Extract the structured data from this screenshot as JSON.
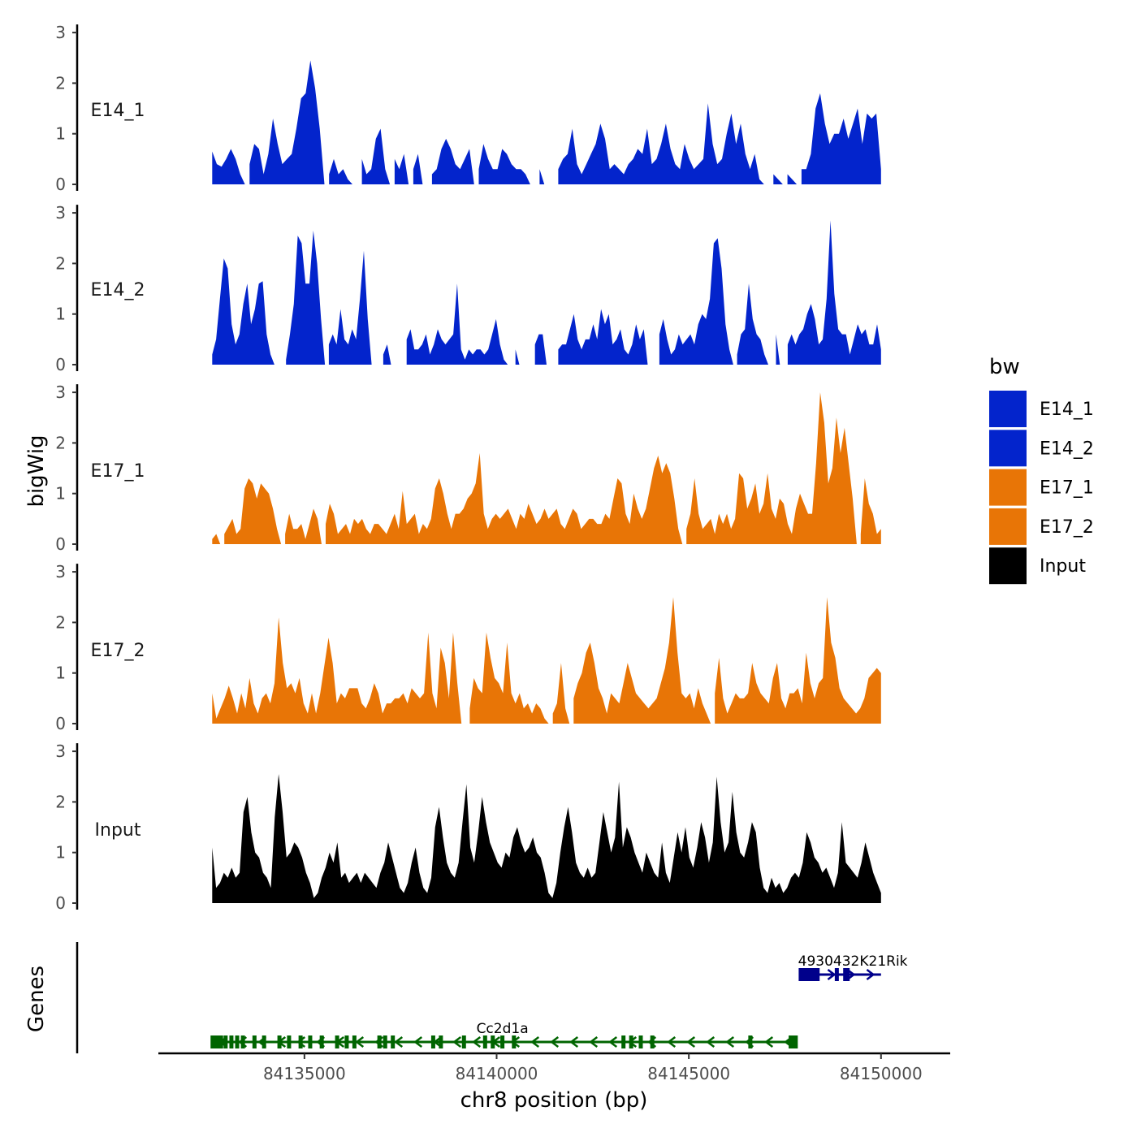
{
  "chart_data": {
    "type": "area",
    "ylabel": "bigWig",
    "xlabel": "chr8 position (bp)",
    "x_range": [
      84132600,
      84150000
    ],
    "xlim": [
      84131200,
      84151800
    ],
    "ylim": [
      0,
      3
    ],
    "y_ticks": [
      "0",
      "1",
      "2",
      "3"
    ],
    "x_ticks": [
      {
        "value": 84135000,
        "label": "84135000"
      },
      {
        "value": 84140000,
        "label": "84140000"
      },
      {
        "value": 84145000,
        "label": "84145000"
      },
      {
        "value": 84150000,
        "label": "84150000"
      }
    ],
    "genes_axis_label": "Genes",
    "legend": {
      "title": "bw",
      "entries": [
        {
          "label": "E14_1",
          "color": "#0324cc"
        },
        {
          "label": "E14_2",
          "color": "#0324cc"
        },
        {
          "label": "E17_1",
          "color": "#e87506"
        },
        {
          "label": "E17_2",
          "color": "#e87506"
        },
        {
          "label": "Input",
          "color": "#000000"
        }
      ]
    },
    "series": [
      {
        "name": "E14_1",
        "color": "#0324cc",
        "label": "E14_1",
        "values": [
          0.65,
          0.4,
          0.35,
          0.5,
          0.7,
          0.5,
          0.2,
          0,
          0.4,
          0.8,
          0.7,
          0.2,
          0.6,
          1.3,
          0.8,
          0.4,
          0.5,
          0.6,
          1.1,
          1.7,
          1.8,
          2.45,
          1.9,
          1.1,
          0,
          0.2,
          0.5,
          0.2,
          0.3,
          0.1,
          0,
          0,
          0.5,
          0.2,
          0.3,
          0.9,
          1.1,
          0.3,
          0,
          0.5,
          0.3,
          0.6,
          0,
          0.3,
          0.6,
          0,
          0,
          0.2,
          0.3,
          0.7,
          0.9,
          0.7,
          0.4,
          0.3,
          0.5,
          0.7,
          0,
          0.3,
          0.8,
          0.5,
          0.3,
          0.3,
          0.7,
          0.6,
          0.4,
          0.3,
          0.3,
          0.2,
          0,
          0,
          0.3,
          0,
          0,
          0,
          0.3,
          0.5,
          0.6,
          1.1,
          0.4,
          0.2,
          0.4,
          0.6,
          0.8,
          1.2,
          0.9,
          0.3,
          0.4,
          0.3,
          0.2,
          0.4,
          0.5,
          0.7,
          0.6,
          1.1,
          0.4,
          0.5,
          0.8,
          1.2,
          0.7,
          0.4,
          0.3,
          0.8,
          0.5,
          0.3,
          0.4,
          0.5,
          1.6,
          0.8,
          0.4,
          0.5,
          1.0,
          1.4,
          0.8,
          1.2,
          0.6,
          0.3,
          0.6,
          0.1,
          0,
          0,
          0.2,
          0.1,
          0,
          0.2,
          0.1,
          0,
          0.3,
          0.3,
          0.6,
          1.5,
          1.8,
          1.2,
          0.8,
          1.0,
          1.0,
          1.3,
          0.9,
          1.2,
          1.5,
          0.8,
          1.4,
          1.3,
          1.4,
          0.3
        ]
      },
      {
        "name": "E14_2",
        "color": "#0324cc",
        "label": "E14_2",
        "values": [
          0.2,
          0.5,
          1.3,
          2.1,
          1.9,
          0.8,
          0.4,
          0.6,
          1.2,
          1.6,
          0.8,
          1.1,
          1.6,
          1.65,
          0.6,
          0.2,
          0,
          0,
          0,
          0.1,
          0.6,
          1.2,
          2.55,
          2.4,
          1.6,
          1.6,
          2.65,
          2.0,
          0.9,
          0,
          0.4,
          0.6,
          0.4,
          1.1,
          0.5,
          0.4,
          0.7,
          0.5,
          1.3,
          2.25,
          0.9,
          0,
          0,
          0,
          0.2,
          0.4,
          0,
          0,
          0,
          0,
          0.5,
          0.7,
          0.3,
          0.3,
          0.4,
          0.6,
          0.2,
          0.4,
          0.7,
          0.5,
          0.4,
          0.5,
          0.6,
          1.6,
          0.3,
          0.1,
          0.3,
          0.2,
          0.3,
          0.3,
          0.2,
          0.3,
          0.6,
          0.9,
          0.4,
          0.1,
          0,
          0,
          0.3,
          0,
          0,
          0,
          0,
          0.4,
          0.6,
          0.6,
          0,
          0,
          0,
          0.3,
          0.4,
          0.4,
          0.7,
          1.0,
          0.5,
          0.3,
          0.5,
          0.5,
          0.8,
          0.5,
          1.1,
          0.8,
          1.0,
          0.4,
          0.5,
          0.7,
          0.3,
          0.2,
          0.4,
          0.8,
          0.5,
          0.7,
          0,
          0,
          0,
          0.6,
          0.9,
          0.5,
          0.2,
          0.3,
          0.6,
          0.4,
          0.5,
          0.6,
          0.4,
          0.8,
          1.0,
          0.9,
          1.3,
          2.4,
          2.5,
          1.9,
          0.8,
          0.3,
          0,
          0.2,
          0.6,
          0.7,
          1.6,
          0.9,
          0.6,
          0.5,
          0.2,
          0,
          0,
          0.6,
          0,
          0,
          0.4,
          0.6,
          0.4,
          0.6,
          0.7,
          1.0,
          1.2,
          0.9,
          0.4,
          0.5,
          1.3,
          2.85,
          1.4,
          0.7,
          0.6,
          0.6,
          0.2,
          0.5,
          0.8,
          0.6,
          0.7,
          0.4,
          0.4,
          0.8,
          0.3
        ]
      },
      {
        "name": "E17_1",
        "color": "#e87506",
        "label": "E17_1",
        "values": [
          0.1,
          0.2,
          0,
          0.2,
          0.35,
          0.5,
          0.2,
          0.3,
          1.1,
          1.3,
          1.2,
          0.9,
          1.2,
          1.1,
          1.0,
          0.7,
          0.3,
          0,
          0.2,
          0.6,
          0.3,
          0.3,
          0.4,
          0.1,
          0.4,
          0.7,
          0.5,
          0,
          0.4,
          0.8,
          0.6,
          0.2,
          0.3,
          0.4,
          0.2,
          0.5,
          0.4,
          0.5,
          0.3,
          0.2,
          0.4,
          0.4,
          0.3,
          0.2,
          0.4,
          0.6,
          0.3,
          1.05,
          0.4,
          0.5,
          0.6,
          0.2,
          0.4,
          0.3,
          0.5,
          1.1,
          1.3,
          1.0,
          0.6,
          0.3,
          0.6,
          0.6,
          0.7,
          0.9,
          1.0,
          1.2,
          1.8,
          0.6,
          0.3,
          0.5,
          0.6,
          0.5,
          0.6,
          0.7,
          0.5,
          0.3,
          0.6,
          0.5,
          0.8,
          0.6,
          0.4,
          0.5,
          0.7,
          0.5,
          0.6,
          0.7,
          0.4,
          0.3,
          0.5,
          0.7,
          0.6,
          0.3,
          0.4,
          0.5,
          0.5,
          0.4,
          0.4,
          0.6,
          0.5,
          0.9,
          1.3,
          1.2,
          0.6,
          0.4,
          1.0,
          0.7,
          0.5,
          0.7,
          1.1,
          1.5,
          1.75,
          1.4,
          1.6,
          1.4,
          0.9,
          0.3,
          0,
          0.3,
          0.6,
          1.3,
          0.6,
          0.3,
          0.4,
          0.5,
          0.2,
          0.6,
          0.4,
          0.6,
          0.3,
          0.5,
          1.4,
          1.3,
          0.7,
          0.9,
          1.2,
          0.6,
          0.8,
          1.4,
          0.7,
          0.5,
          0.9,
          0.8,
          0.4,
          0.2,
          0.7,
          1.0,
          0.8,
          0.6,
          0.6,
          1.6,
          3.0,
          2.4,
          1.2,
          1.5,
          2.5,
          1.8,
          2.3,
          1.6,
          0.9,
          0,
          0.2,
          1.3,
          0.8,
          0.6,
          0.2,
          0.3
        ]
      },
      {
        "name": "E17_2",
        "color": "#e87506",
        "label": "E17_2",
        "values": [
          0.6,
          0.1,
          0.3,
          0.5,
          0.75,
          0.5,
          0.2,
          0.6,
          0.3,
          0.9,
          0.4,
          0.2,
          0.5,
          0.6,
          0.4,
          0.8,
          2.1,
          1.2,
          0.7,
          0.8,
          0.6,
          0.9,
          0.4,
          0.2,
          0.6,
          0.2,
          0.6,
          1.15,
          1.7,
          1.2,
          0.4,
          0.6,
          0.5,
          0.7,
          0.7,
          0.7,
          0.4,
          0.3,
          0.5,
          0.8,
          0.6,
          0.2,
          0.4,
          0.4,
          0.5,
          0.5,
          0.6,
          0.4,
          0.7,
          0.6,
          0.5,
          0.6,
          1.8,
          0.6,
          0.3,
          1.5,
          1.2,
          0.5,
          1.8,
          0.8,
          0,
          0,
          0.3,
          0.9,
          0.7,
          0.6,
          1.8,
          1.3,
          0.9,
          0.8,
          0.6,
          1.6,
          0.6,
          0.4,
          0.6,
          0.3,
          0.4,
          0.2,
          0.4,
          0.3,
          0.1,
          0,
          0.2,
          0.4,
          1.2,
          0.3,
          0,
          0.5,
          0.8,
          1.0,
          1.4,
          1.6,
          1.2,
          0.7,
          0.5,
          0.2,
          0.6,
          0.5,
          0.4,
          0.8,
          1.2,
          0.9,
          0.6,
          0.5,
          0.4,
          0.3,
          0.4,
          0.5,
          0.8,
          1.1,
          1.6,
          2.5,
          1.4,
          0.6,
          0.5,
          0.6,
          0.3,
          0.7,
          0.4,
          0.2,
          0,
          0.6,
          1.3,
          0.5,
          0.2,
          0.4,
          0.6,
          0.5,
          0.5,
          0.6,
          1.2,
          0.8,
          0.6,
          0.5,
          0.4,
          0.9,
          1.2,
          0.5,
          0.3,
          0.6,
          0.6,
          0.7,
          0.4,
          1.4,
          0.8,
          0.5,
          0.8,
          0.9,
          2.5,
          1.6,
          1.3,
          0.7,
          0.5,
          0.4,
          0.3,
          0.2,
          0.3,
          0.5,
          0.9,
          1.0,
          1.1,
          1.0
        ]
      },
      {
        "name": "Input",
        "color": "#000000",
        "label": "Input",
        "values": [
          1.1,
          0.3,
          0.4,
          0.6,
          0.5,
          0.7,
          0.5,
          0.6,
          1.8,
          2.1,
          1.4,
          1.0,
          0.9,
          0.6,
          0.5,
          0.3,
          1.7,
          2.55,
          1.8,
          0.9,
          1.0,
          1.2,
          1.1,
          0.9,
          0.6,
          0.4,
          0.1,
          0.2,
          0.5,
          0.7,
          1.0,
          0.8,
          1.2,
          0.5,
          0.6,
          0.4,
          0.5,
          0.6,
          0.4,
          0.6,
          0.5,
          0.4,
          0.3,
          0.6,
          0.8,
          1.2,
          0.9,
          0.6,
          0.3,
          0.2,
          0.4,
          0.8,
          1.1,
          0.6,
          0.3,
          0.2,
          0.5,
          1.5,
          1.9,
          1.3,
          0.8,
          0.6,
          0.5,
          0.8,
          1.6,
          2.35,
          1.1,
          0.8,
          1.4,
          2.1,
          1.6,
          1.2,
          1.0,
          0.8,
          0.7,
          1.0,
          0.9,
          1.3,
          1.5,
          1.2,
          1.0,
          1.1,
          1.3,
          1.0,
          0.9,
          0.6,
          0.2,
          0.1,
          0.4,
          1.0,
          1.5,
          1.9,
          1.4,
          0.8,
          0.6,
          0.5,
          0.7,
          0.5,
          0.6,
          1.2,
          1.8,
          1.4,
          1.0,
          1.3,
          2.4,
          1.1,
          1.5,
          1.3,
          1.0,
          0.8,
          0.6,
          1.0,
          0.8,
          0.6,
          0.5,
          1.2,
          0.6,
          0.4,
          0.9,
          1.4,
          1.0,
          1.5,
          0.9,
          0.7,
          1.1,
          1.6,
          1.3,
          0.8,
          1.2,
          2.5,
          1.6,
          1.0,
          1.2,
          2.2,
          1.4,
          1.0,
          0.9,
          1.2,
          1.6,
          1.4,
          0.7,
          0.3,
          0.2,
          0.5,
          0.3,
          0.4,
          0.2,
          0.3,
          0.5,
          0.6,
          0.5,
          0.8,
          1.4,
          1.2,
          0.9,
          0.8,
          0.6,
          0.7,
          0.5,
          0.3,
          0.6,
          1.6,
          0.8,
          0.7,
          0.6,
          0.5,
          0.8,
          1.2,
          0.9,
          0.6,
          0.4,
          0.2
        ]
      }
    ],
    "genes": [
      {
        "name": "Cc2d1a",
        "label": "Cc2d1a",
        "start": 84132600,
        "end": 84147800,
        "strand": "-",
        "color": "#006400",
        "row": 0,
        "exons": [
          84132650,
          84132800,
          84132950,
          84133100,
          84133250,
          84133400,
          84133700,
          84133950,
          84134350,
          84134600,
          84134900,
          84135150,
          84135450,
          84135850,
          84136100,
          84136300,
          84136950,
          84137100,
          84137300,
          84138350,
          84138550,
          84139150,
          84139700,
          84139900,
          84140150,
          84140450,
          84143300,
          84143500,
          84143750,
          84144050,
          84146600,
          84147650,
          84147750
        ]
      },
      {
        "name": "4930432K21Rik",
        "label": "4930432K21Rik",
        "start": 84147900,
        "end": 84150000,
        "strand": "+",
        "color": "#00008b",
        "row": 1,
        "exons": [
          84148000,
          84148250,
          84148350,
          84148850,
          84149100
        ]
      }
    ]
  }
}
